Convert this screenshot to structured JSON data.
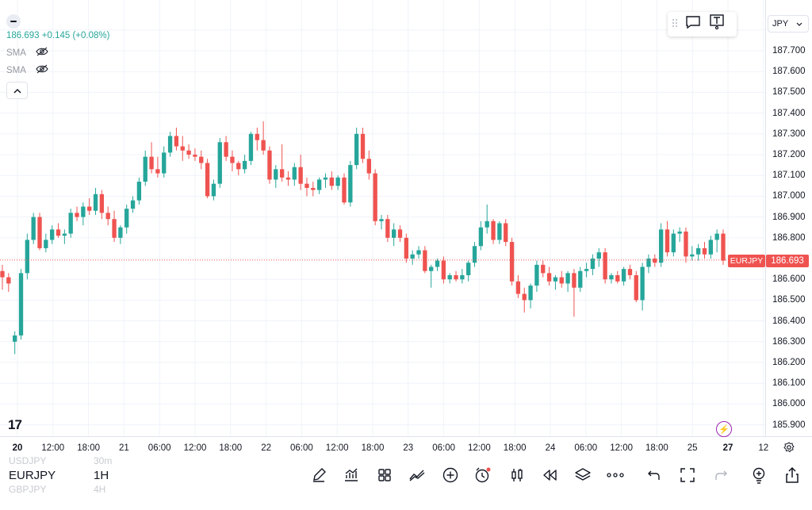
{
  "legend": {
    "price_text": "186.693 +0.145 (+0.08%)",
    "sma_1": "SMA",
    "sma_2": "SMA"
  },
  "currency": {
    "label": "JPY"
  },
  "last_price": {
    "symbol": "EURJPY",
    "value": "186.693"
  },
  "price_axis": {
    "labels": [
      "187.700",
      "187.600",
      "187.500",
      "187.400",
      "187.300",
      "187.200",
      "187.100",
      "187.000",
      "186.900",
      "186.800",
      "186.600",
      "186.500",
      "186.400",
      "186.300",
      "186.200",
      "186.100",
      "186.000",
      "185.900"
    ]
  },
  "time_axis": {
    "labels": [
      {
        "text": "20",
        "bold": true
      },
      {
        "text": "12:00",
        "bold": false
      },
      {
        "text": "18:00",
        "bold": false
      },
      {
        "text": "21",
        "bold": false
      },
      {
        "text": "06:00",
        "bold": false
      },
      {
        "text": "12:00",
        "bold": false
      },
      {
        "text": "18:00",
        "bold": false
      },
      {
        "text": "22",
        "bold": false
      },
      {
        "text": "06:00",
        "bold": false
      },
      {
        "text": "12:00",
        "bold": false
      },
      {
        "text": "18:00",
        "bold": false
      },
      {
        "text": "23",
        "bold": false
      },
      {
        "text": "06:00",
        "bold": false
      },
      {
        "text": "12:00",
        "bold": false
      },
      {
        "text": "18:00",
        "bold": false
      },
      {
        "text": "24",
        "bold": false
      },
      {
        "text": "06:00",
        "bold": false
      },
      {
        "text": "12:00",
        "bold": false
      },
      {
        "text": "18:00",
        "bold": false
      },
      {
        "text": "25",
        "bold": false
      },
      {
        "text": "27",
        "bold": true
      },
      {
        "text": "12",
        "bold": false
      }
    ]
  },
  "bottom": {
    "symbol": "EURJPY",
    "interval": "1H",
    "ghost_symbol_above": "USDJPY",
    "ghost_interval_above": "30m",
    "ghost_symbol_below": "GBPJPY",
    "ghost_interval_below": "4H",
    "tools": [
      "pen-icon",
      "indicators-icon",
      "templates-icon",
      "compare-icon",
      "add-icon",
      "alert-icon",
      "candles-icon",
      "replay-icon",
      "layers-icon",
      "more-icon",
      "undo-icon",
      "fullscreen-icon",
      "redo-icon",
      "ideas-icon",
      "share-icon"
    ]
  },
  "logo": "17",
  "colors": {
    "up": "#26a69a",
    "down": "#ef5350",
    "grid": "#f0f3fa",
    "price_line": "#ef5350"
  },
  "chart_data": {
    "type": "candlestick",
    "symbol": "EURJPY",
    "interval": "1H",
    "ylim": [
      185.85,
      187.75
    ],
    "candles": [
      [
        186.64,
        186.67,
        186.55,
        186.61
      ],
      [
        186.61,
        186.63,
        186.54,
        186.58
      ],
      [
        186.3,
        186.35,
        186.24,
        186.33
      ],
      [
        186.33,
        186.65,
        186.31,
        186.63
      ],
      [
        186.63,
        186.82,
        186.6,
        186.79
      ],
      [
        186.79,
        186.92,
        186.77,
        186.9
      ],
      [
        186.9,
        186.92,
        186.74,
        186.75
      ],
      [
        186.75,
        186.82,
        186.73,
        186.79
      ],
      [
        186.79,
        186.86,
        186.77,
        186.84
      ],
      [
        186.84,
        186.87,
        186.8,
        186.81
      ],
      [
        186.81,
        186.84,
        186.77,
        186.82
      ],
      [
        186.82,
        186.94,
        186.8,
        186.92
      ],
      [
        186.92,
        186.95,
        186.88,
        186.9
      ],
      [
        186.9,
        186.97,
        186.86,
        186.95
      ],
      [
        186.95,
        186.99,
        186.91,
        186.93
      ],
      [
        186.93,
        187.04,
        186.91,
        187.01
      ],
      [
        187.01,
        187.03,
        186.89,
        186.92
      ],
      [
        186.92,
        186.95,
        186.86,
        186.89
      ],
      [
        186.89,
        186.93,
        186.78,
        186.8
      ],
      [
        186.8,
        186.86,
        186.77,
        186.85
      ],
      [
        186.85,
        186.96,
        186.82,
        186.94
      ],
      [
        186.94,
        187.0,
        186.92,
        186.98
      ],
      [
        186.98,
        187.09,
        186.96,
        187.07
      ],
      [
        187.07,
        187.22,
        187.05,
        187.19
      ],
      [
        187.19,
        187.26,
        187.11,
        187.13
      ],
      [
        187.13,
        187.19,
        187.09,
        187.11
      ],
      [
        187.11,
        187.24,
        187.09,
        187.21
      ],
      [
        187.21,
        187.31,
        187.19,
        187.29
      ],
      [
        187.29,
        187.33,
        187.22,
        187.24
      ],
      [
        187.24,
        187.29,
        187.17,
        187.22
      ],
      [
        187.22,
        187.25,
        187.18,
        187.2
      ],
      [
        187.2,
        187.23,
        187.17,
        187.19
      ],
      [
        187.19,
        187.22,
        187.13,
        187.16
      ],
      [
        187.16,
        187.18,
        186.99,
        187.0
      ],
      [
        187.0,
        187.08,
        186.98,
        187.06
      ],
      [
        187.06,
        187.28,
        187.04,
        187.26
      ],
      [
        187.26,
        187.29,
        187.17,
        187.19
      ],
      [
        187.19,
        187.22,
        187.12,
        187.16
      ],
      [
        187.16,
        187.17,
        187.1,
        187.13
      ],
      [
        187.13,
        187.2,
        187.11,
        187.17
      ],
      [
        187.17,
        187.31,
        187.15,
        187.3
      ],
      [
        187.3,
        187.33,
        187.22,
        187.27
      ],
      [
        187.27,
        187.36,
        187.2,
        187.22
      ],
      [
        187.22,
        187.24,
        187.06,
        187.08
      ],
      [
        187.08,
        187.15,
        187.04,
        187.13
      ],
      [
        187.13,
        187.25,
        187.07,
        187.09
      ],
      [
        187.09,
        187.12,
        187.05,
        187.08
      ],
      [
        187.08,
        187.16,
        187.05,
        187.14
      ],
      [
        187.14,
        187.2,
        187.03,
        187.06
      ],
      [
        187.06,
        187.09,
        187.0,
        187.04
      ],
      [
        187.04,
        187.07,
        187.0,
        187.03
      ],
      [
        187.03,
        187.09,
        187.01,
        187.08
      ],
      [
        187.08,
        187.11,
        187.04,
        187.09
      ],
      [
        187.09,
        187.12,
        187.03,
        187.05
      ],
      [
        187.05,
        187.1,
        187.03,
        187.09
      ],
      [
        187.09,
        187.11,
        186.96,
        186.97
      ],
      [
        186.97,
        187.17,
        186.95,
        187.15
      ],
      [
        187.15,
        187.33,
        187.13,
        187.3
      ],
      [
        187.3,
        187.33,
        187.16,
        187.18
      ],
      [
        187.18,
        187.22,
        187.08,
        187.11
      ],
      [
        187.11,
        187.13,
        186.86,
        186.88
      ],
      [
        186.88,
        186.91,
        186.84,
        186.89
      ],
      [
        186.89,
        186.91,
        186.78,
        186.8
      ],
      [
        186.8,
        186.87,
        186.76,
        186.84
      ],
      [
        186.84,
        186.86,
        186.78,
        186.8
      ],
      [
        186.8,
        186.82,
        186.68,
        186.7
      ],
      [
        186.7,
        186.74,
        186.67,
        186.72
      ],
      [
        186.72,
        186.76,
        186.7,
        186.74
      ],
      [
        186.74,
        186.76,
        186.63,
        186.64
      ],
      [
        186.64,
        186.67,
        186.56,
        186.66
      ],
      [
        186.66,
        186.7,
        186.64,
        186.69
      ],
      [
        186.69,
        186.71,
        186.58,
        186.6
      ],
      [
        186.6,
        186.63,
        186.58,
        186.62
      ],
      [
        186.62,
        186.64,
        186.59,
        186.6
      ],
      [
        186.6,
        186.65,
        186.58,
        186.62
      ],
      [
        186.62,
        186.69,
        186.59,
        186.68
      ],
      [
        186.68,
        186.78,
        186.66,
        186.76
      ],
      [
        186.76,
        186.88,
        186.74,
        186.85
      ],
      [
        186.85,
        186.96,
        186.82,
        186.88
      ],
      [
        186.88,
        186.89,
        186.77,
        186.79
      ],
      [
        186.79,
        186.88,
        186.77,
        186.87
      ],
      [
        186.87,
        186.89,
        186.76,
        186.78
      ],
      [
        186.78,
        186.8,
        186.57,
        186.59
      ],
      [
        186.59,
        186.62,
        186.51,
        186.53
      ],
      [
        186.53,
        186.56,
        186.44,
        186.5
      ],
      [
        186.5,
        186.58,
        186.46,
        186.57
      ],
      [
        186.57,
        186.69,
        186.54,
        186.67
      ],
      [
        186.67,
        186.69,
        186.61,
        186.63
      ],
      [
        186.63,
        186.66,
        186.57,
        186.59
      ],
      [
        186.59,
        186.62,
        186.55,
        186.61
      ],
      [
        186.61,
        186.64,
        186.56,
        186.58
      ],
      [
        186.58,
        186.64,
        186.54,
        186.63
      ],
      [
        186.63,
        186.65,
        186.42,
        186.56
      ],
      [
        186.56,
        186.66,
        186.54,
        186.64
      ],
      [
        186.64,
        186.68,
        186.61,
        186.65
      ],
      [
        186.65,
        186.72,
        186.62,
        186.7
      ],
      [
        186.7,
        186.75,
        186.66,
        186.73
      ],
      [
        186.73,
        186.75,
        186.58,
        186.6
      ],
      [
        186.6,
        186.63,
        186.58,
        186.62
      ],
      [
        186.62,
        186.64,
        186.58,
        186.59
      ],
      [
        186.59,
        186.66,
        186.57,
        186.65
      ],
      [
        186.65,
        186.67,
        186.6,
        186.62
      ],
      [
        186.62,
        186.64,
        186.49,
        186.5
      ],
      [
        186.5,
        186.68,
        186.45,
        186.66
      ],
      [
        186.66,
        186.72,
        186.63,
        186.7
      ],
      [
        186.7,
        186.72,
        186.66,
        186.68
      ],
      [
        186.68,
        186.87,
        186.66,
        186.84
      ],
      [
        186.84,
        186.88,
        186.71,
        186.73
      ],
      [
        186.73,
        186.84,
        186.71,
        186.82
      ],
      [
        186.82,
        186.85,
        186.78,
        186.83
      ],
      [
        186.83,
        186.85,
        186.68,
        186.71
      ],
      [
        186.71,
        186.76,
        186.69,
        186.72
      ],
      [
        186.72,
        186.77,
        186.69,
        186.75
      ],
      [
        186.75,
        186.78,
        186.7,
        186.72
      ],
      [
        186.72,
        186.81,
        186.7,
        186.79
      ],
      [
        186.79,
        186.84,
        186.73,
        186.82
      ],
      [
        186.82,
        186.84,
        186.67,
        186.69
      ]
    ]
  }
}
